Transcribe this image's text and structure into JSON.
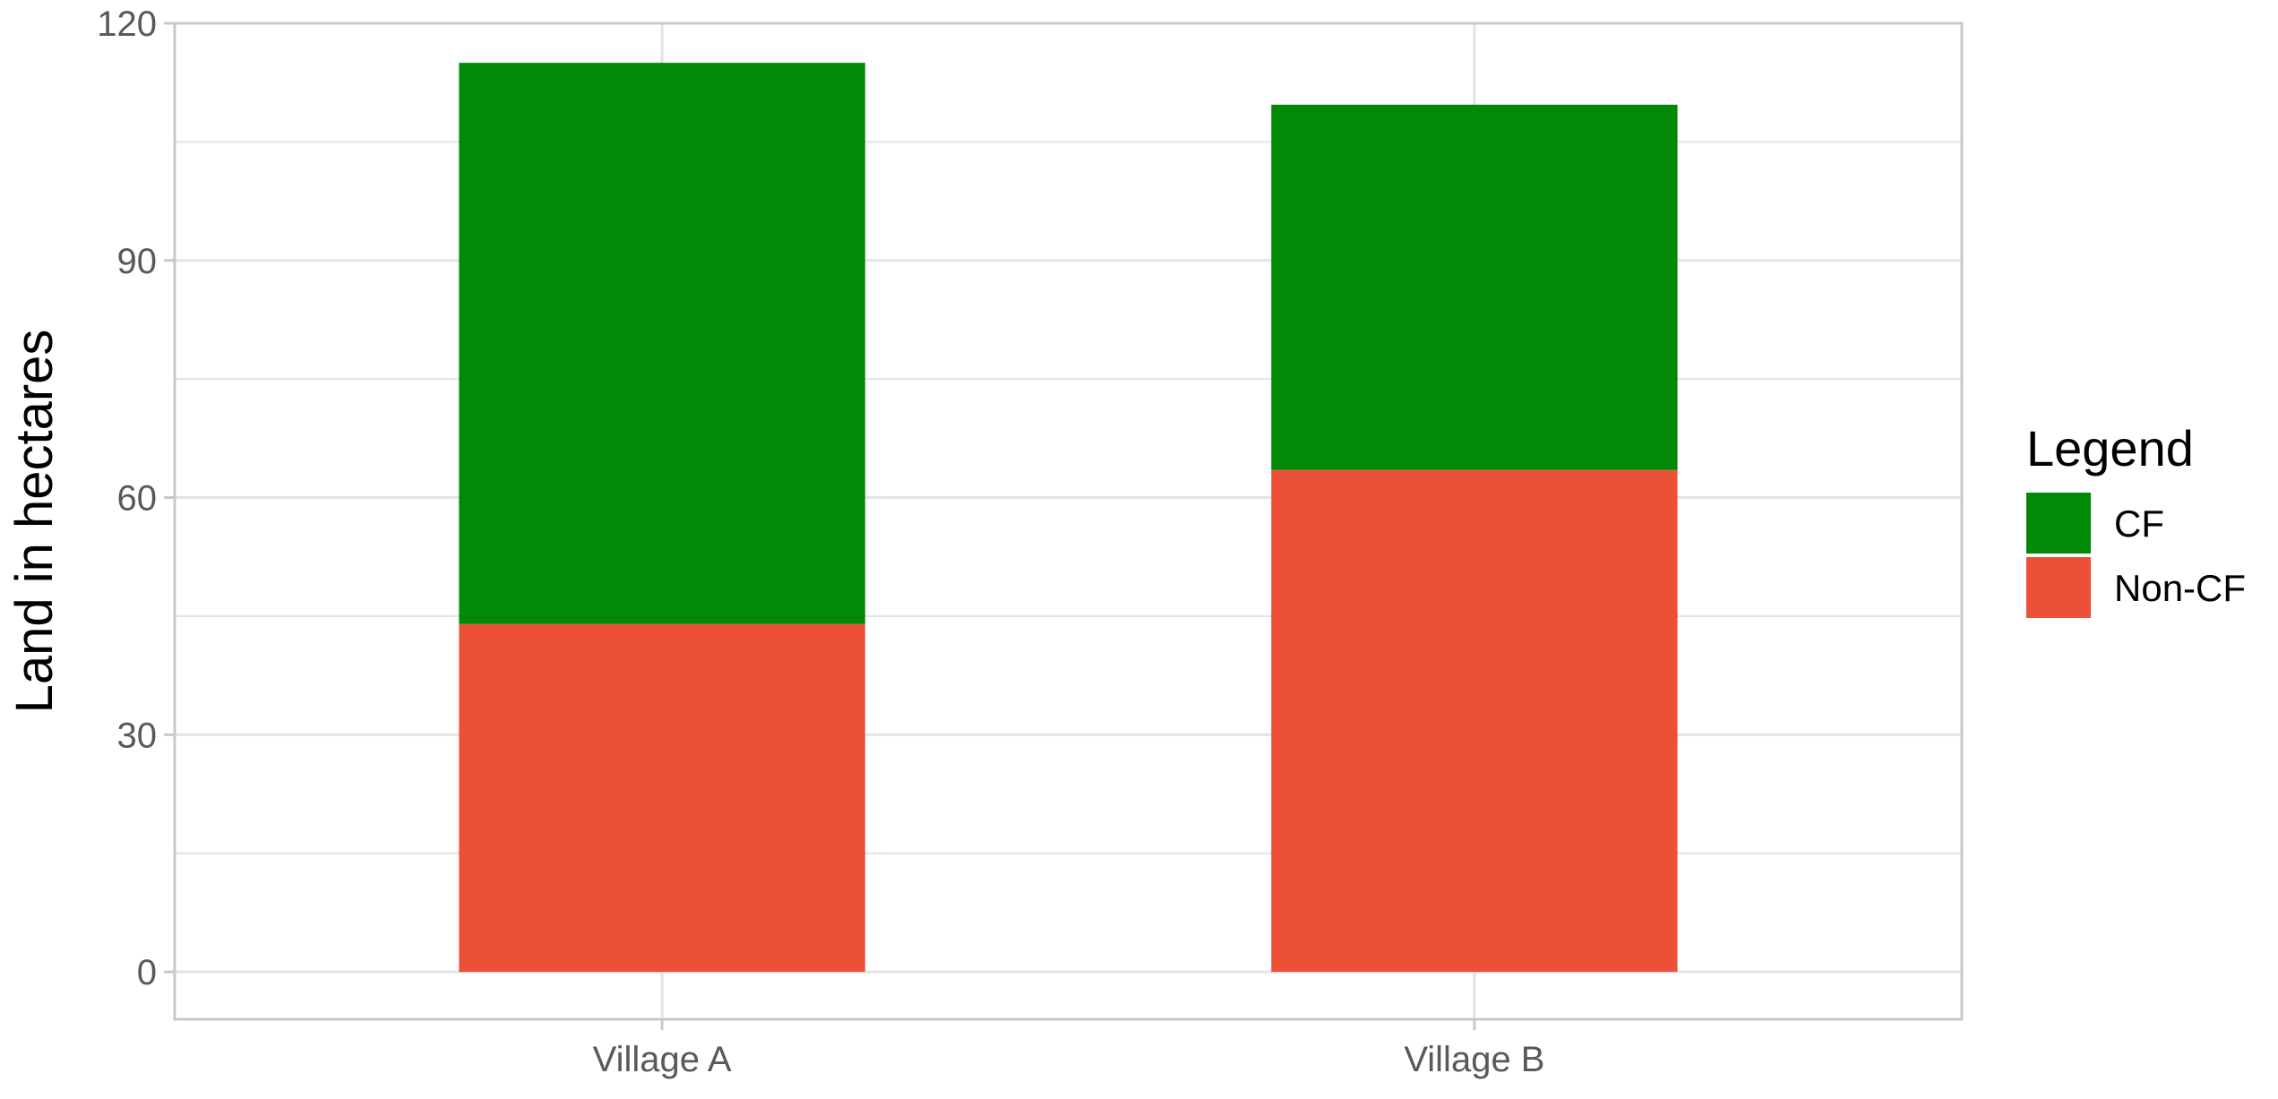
{
  "chart_data": {
    "type": "bar",
    "stacked": true,
    "categories": [
      "Village A",
      "Village B"
    ],
    "series": [
      {
        "name": "Non-CF",
        "values": [
          44,
          63.5
        ],
        "color": "#ec5137"
      },
      {
        "name": "CF",
        "values": [
          71,
          46.2
        ],
        "color": "#028a06"
      }
    ],
    "xlabel": "",
    "ylabel": "Land in hectares",
    "ylim": [
      -6,
      120
    ],
    "yticks": [
      0,
      30,
      60,
      90,
      120
    ],
    "grid": true,
    "legend": {
      "title": "Legend",
      "position": "right",
      "entries": [
        {
          "label": "CF",
          "color": "#028a06"
        },
        {
          "label": "Non-CF",
          "color": "#ec5137"
        }
      ]
    }
  }
}
